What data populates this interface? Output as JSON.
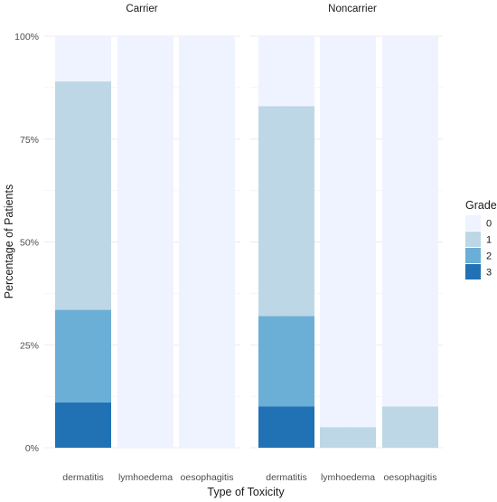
{
  "chart_data": {
    "type": "bar",
    "stacked": "percent",
    "xlabel": "Type of Toxicity",
    "ylabel": "Percentage of Patients",
    "ylim": [
      0,
      100
    ],
    "yticks": [
      "0%",
      "25%",
      "50%",
      "75%",
      "100%"
    ],
    "grid": true,
    "legend": {
      "title": "Grade",
      "placement": "right",
      "entries": [
        "0",
        "1",
        "2",
        "3"
      ],
      "colors": [
        "#eff3ff",
        "#bdd7e7",
        "#6baed6",
        "#2171b5"
      ]
    },
    "facets": [
      {
        "label": "Carrier",
        "categories": [
          "dermatitis",
          "lymhoedema",
          "oesophagitis"
        ],
        "series": [
          {
            "name": "0",
            "values": [
              11,
              100,
              100
            ]
          },
          {
            "name": "1",
            "values": [
              55.5,
              0,
              0
            ]
          },
          {
            "name": "2",
            "values": [
              22.5,
              0,
              0
            ]
          },
          {
            "name": "3",
            "values": [
              11,
              0,
              0
            ]
          }
        ]
      },
      {
        "label": "Noncarrier",
        "categories": [
          "dermatitis",
          "lymhoedema",
          "oesophagitis"
        ],
        "series": [
          {
            "name": "0",
            "values": [
              17,
              95,
              90
            ]
          },
          {
            "name": "1",
            "values": [
              51,
              5,
              10
            ]
          },
          {
            "name": "2",
            "values": [
              22,
              0,
              0
            ]
          },
          {
            "name": "3",
            "values": [
              10,
              0,
              0
            ]
          }
        ]
      }
    ]
  }
}
